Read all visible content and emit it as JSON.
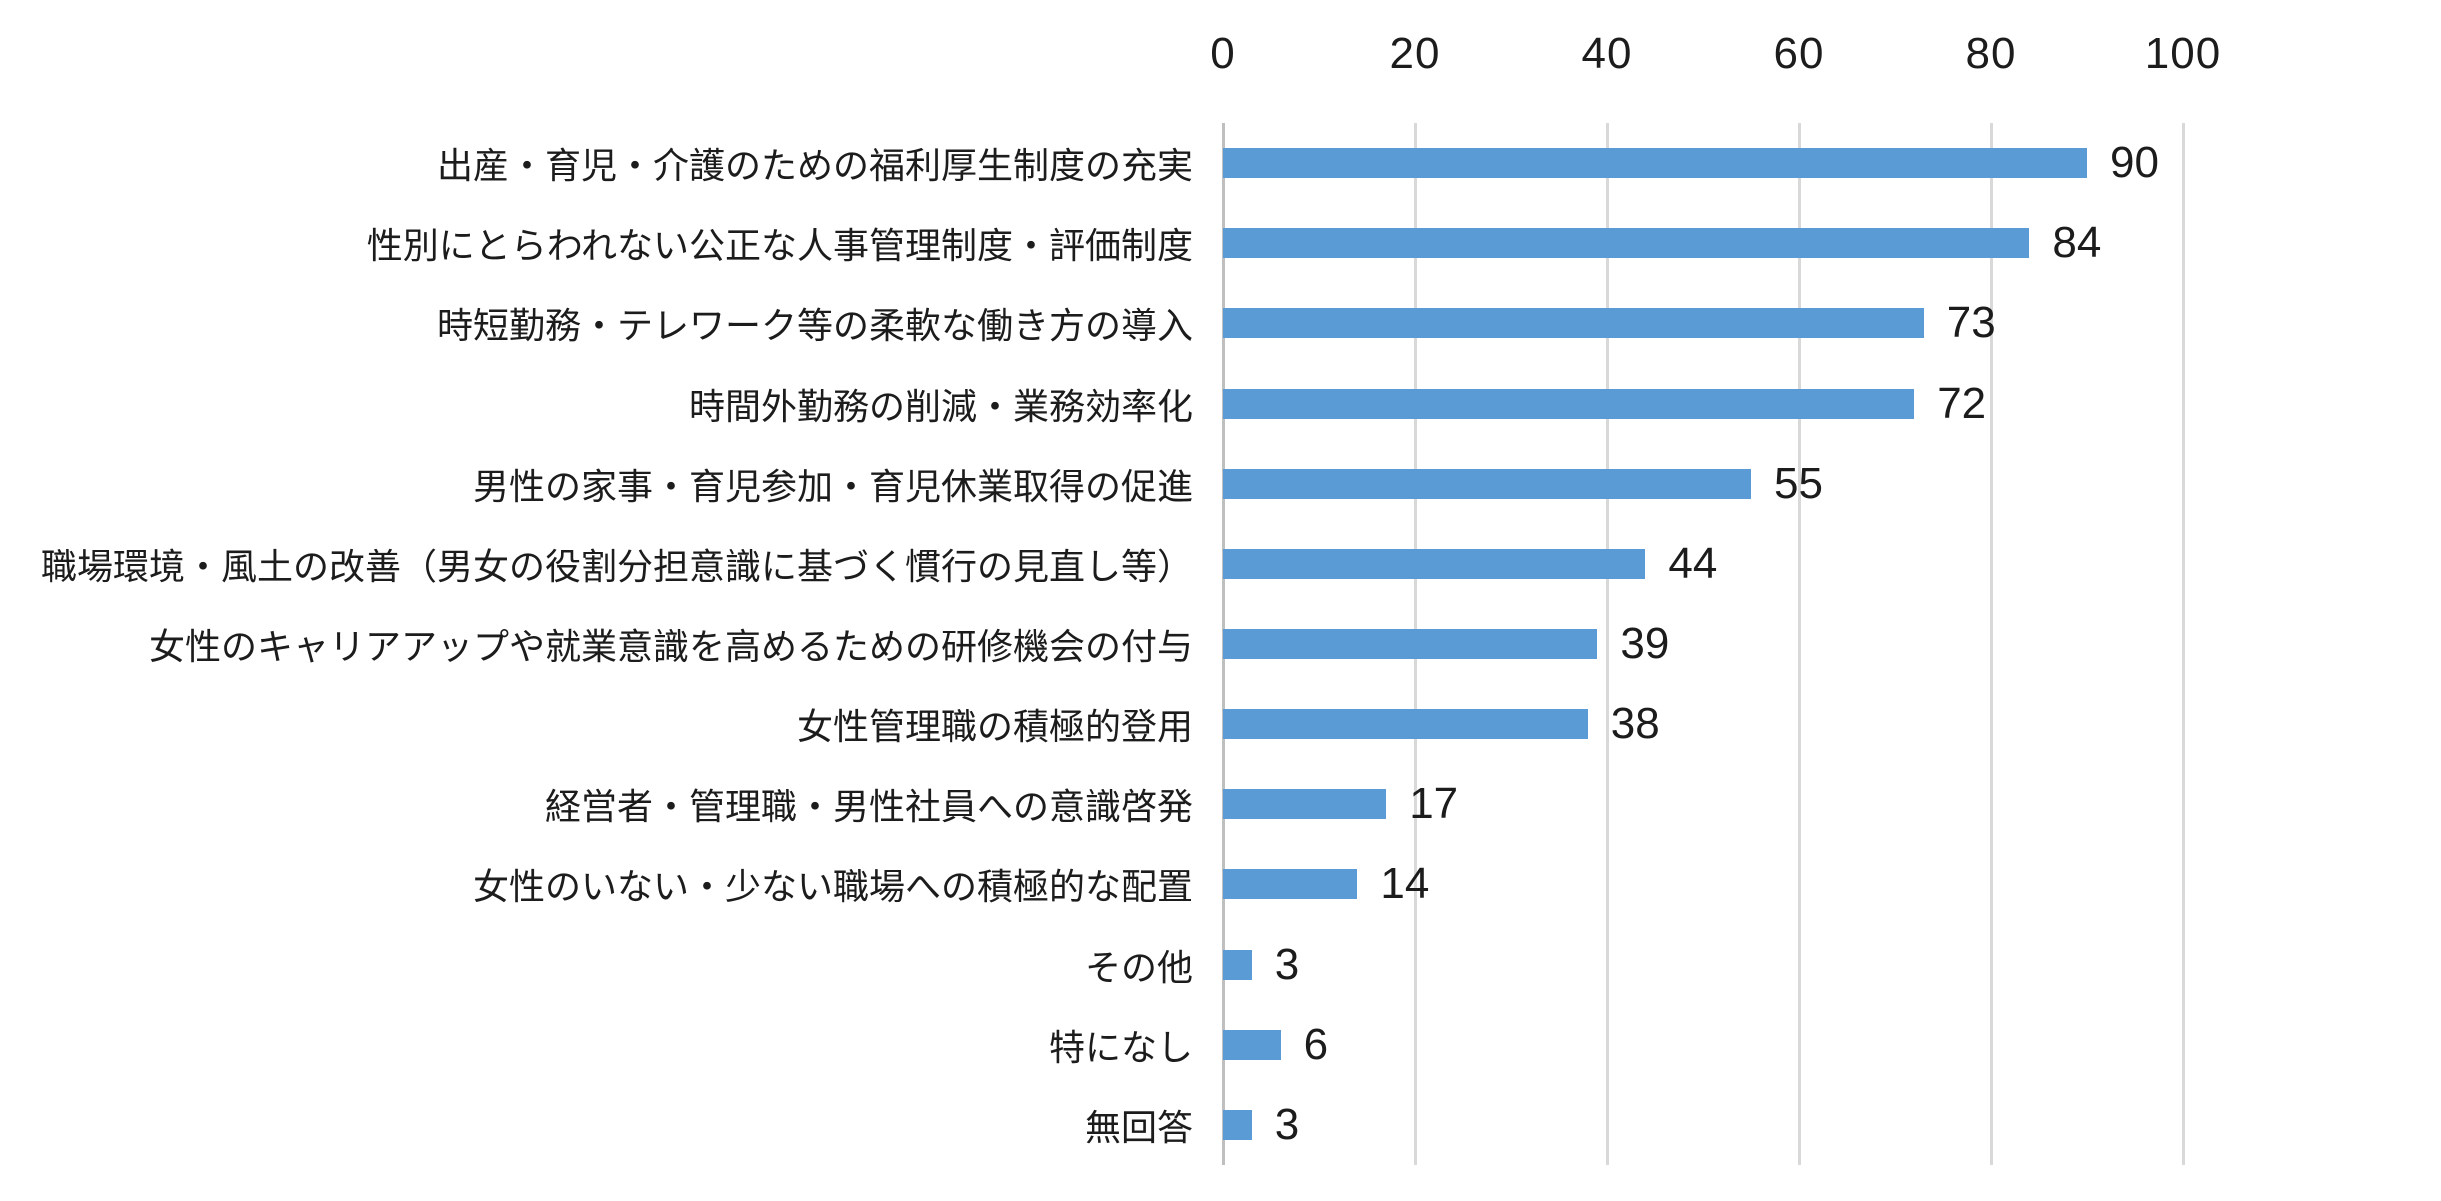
{
  "chart_data": {
    "type": "bar",
    "orientation": "horizontal",
    "title": "",
    "categories": [
      "出産・育児・介護のための福利厚生制度の充実",
      "性別にとらわれない公正な人事管理制度・評価制度",
      "時短勤務・テレワーク等の柔軟な働き方の導入",
      "時間外勤務の削減・業務効率化",
      "男性の家事・育児参加・育児休業取得の促進",
      "職場環境・風土の改善（男女の役割分担意識に基づく慣行の見直し等）",
      "女性のキャリアアップや就業意識を高めるための研修機会の付与",
      "女性管理職の積極的登用",
      "経営者・管理職・男性社員への意識啓発",
      "女性のいない・少ない職場への積極的な配置",
      "その他",
      "特になし",
      "無回答"
    ],
    "values": [
      90,
      84,
      73,
      72,
      55,
      44,
      39,
      38,
      17,
      14,
      3,
      6,
      3
    ],
    "data_labels_shown": true,
    "x_axis": {
      "position": "top",
      "min": 0,
      "max": 100,
      "ticks": [
        0,
        20,
        40,
        60,
        80,
        100
      ]
    },
    "grid": true,
    "legend_position": "none",
    "colors": {
      "bar": "#5B9BD5",
      "gridline": "#D9D9D9",
      "axis_line": "#BFBFBF",
      "text": "#1c1c1c"
    }
  }
}
